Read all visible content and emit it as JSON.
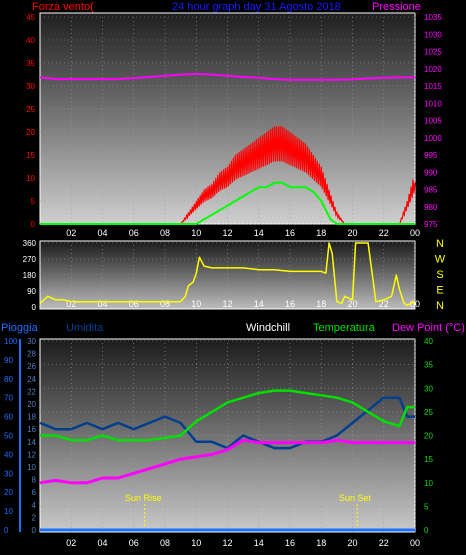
{
  "header": {
    "title": "24 hour graph day  31 Agosto 2018",
    "left_label": "Forza vento(",
    "right_label": "Pressione"
  },
  "wind_panel": {
    "yticks_left": [
      "0",
      "5",
      "10",
      "15",
      "20",
      "25",
      "30",
      "35",
      "40",
      "45"
    ],
    "yticks_right": [
      "975",
      "980",
      "985",
      "990",
      "995",
      "1000",
      "1005",
      "1010",
      "1015",
      "1020",
      "1025",
      "1030",
      "1035"
    ]
  },
  "direction_panel": {
    "yticks_left": [
      "0",
      "90",
      "180",
      "270",
      "360"
    ],
    "compass": [
      "N",
      "W",
      "S",
      "E",
      "N"
    ]
  },
  "temp_panel": {
    "legend": {
      "pioggia": "Pioggia",
      "umidita": "Umidita",
      "windchill": "Windchill",
      "temperatura": "Temperatura",
      "dewpoint": "Dew Point (°C)"
    },
    "rain_ticks": [
      "0",
      "10",
      "20",
      "30",
      "40",
      "50",
      "60",
      "70",
      "80",
      "90",
      "100"
    ],
    "hum_ticks": [
      "0",
      "2",
      "4",
      "6",
      "8",
      "10",
      "12",
      "14",
      "16",
      "18",
      "20",
      "22",
      "24",
      "26",
      "28",
      "30"
    ],
    "temp_ticks": [
      "0",
      "5",
      "10",
      "15",
      "20",
      "25",
      "30",
      "35",
      "40"
    ],
    "sunrise_label": "Sun Rise",
    "sunset_label": "Sun Set"
  },
  "x_ticks": [
    "02",
    "04",
    "06",
    "08",
    "10",
    "12",
    "14",
    "16",
    "18",
    "20",
    "22",
    "00"
  ],
  "colors": {
    "wind": "#ff0000",
    "gust": "#00ff00",
    "pressure": "#ff00ff",
    "direction": "#ffff00",
    "humidity": "#003f8f",
    "temperature": "#00e000",
    "dewpoint": "#ff00ff",
    "rain": "#1a6fff",
    "title": "#1a1aff",
    "compass": "#ffff00",
    "sun_marker": "#ffff00"
  },
  "chart_data": [
    {
      "type": "line",
      "title": "24 hour graph day  31 Agosto 2018",
      "x_unit": "hour",
      "ylim_left": [
        0,
        45
      ],
      "ylim_right": [
        975,
        1035
      ],
      "series": [
        {
          "name": "Forza vento(",
          "axis": "left",
          "x": [
            0,
            9,
            9.5,
            10,
            10.5,
            11,
            11.5,
            12,
            12.5,
            13,
            13.5,
            14,
            14.5,
            15,
            15.5,
            16,
            16.5,
            17,
            17.5,
            18,
            18.5,
            19,
            19.5,
            20,
            21,
            22,
            23,
            23.5,
            24
          ],
          "y": [
            0,
            0,
            2,
            4,
            6,
            7,
            9,
            10,
            12,
            13,
            14,
            15,
            16,
            17,
            17,
            16,
            15,
            14,
            12,
            10,
            6,
            2,
            0,
            0,
            0,
            0,
            0,
            4,
            9
          ]
        },
        {
          "name": "",
          "axis": "left",
          "x": [
            0,
            10,
            10.5,
            11,
            11.5,
            12,
            12.5,
            13,
            13.5,
            14,
            14.5,
            15,
            15.5,
            16,
            16.5,
            17,
            17.5,
            18,
            18.3,
            18.6,
            19,
            24
          ],
          "y": [
            0,
            0,
            1,
            2,
            3,
            4,
            5,
            6,
            7,
            8,
            8,
            9,
            9,
            8,
            8,
            8,
            7,
            5,
            3,
            1,
            0,
            0
          ]
        },
        {
          "name": "Pressione",
          "axis": "right",
          "x": [
            0,
            1,
            2,
            3,
            4,
            5,
            6,
            7,
            8,
            9,
            10,
            11,
            12,
            13,
            14,
            15,
            16,
            17,
            18,
            19,
            20,
            21,
            22,
            23,
            24
          ],
          "y": [
            1017.5,
            1017,
            1017,
            1017,
            1017,
            1017,
            1017.3,
            1017.6,
            1018,
            1018.3,
            1018.5,
            1018.3,
            1018,
            1017.6,
            1017.4,
            1017,
            1016.8,
            1016.8,
            1016.8,
            1016.8,
            1016.9,
            1017.2,
            1017.4,
            1017.5,
            1017.5
          ]
        }
      ]
    },
    {
      "type": "line",
      "x_unit": "hour",
      "ylim": [
        0,
        360
      ],
      "series": [
        {
          "name": "",
          "x": [
            0,
            0.5,
            1,
            1.5,
            2,
            3,
            4,
            5,
            6,
            7,
            8,
            8.5,
            9,
            9.3,
            9.5,
            9.8,
            10,
            10.2,
            10.5,
            11,
            12,
            13,
            14,
            15,
            16,
            17,
            18,
            18.3,
            18.5,
            18.7,
            19,
            19.3,
            19.5,
            20,
            20.2,
            21,
            21.5,
            22,
            22.5,
            22.8,
            23,
            23.3,
            23.5,
            24
          ],
          "y": [
            20,
            60,
            40,
            40,
            30,
            30,
            30,
            30,
            30,
            30,
            30,
            30,
            30,
            60,
            120,
            140,
            190,
            280,
            230,
            220,
            220,
            220,
            210,
            210,
            200,
            200,
            200,
            190,
            360,
            300,
            30,
            20,
            60,
            40,
            360,
            360,
            30,
            40,
            60,
            180,
            100,
            20,
            10,
            30
          ]
        }
      ]
    },
    {
      "type": "line",
      "x_unit": "hour",
      "ylim_rain": [
        0,
        100
      ],
      "ylim_humidity": [
        0,
        30
      ],
      "ylim_temp": [
        0,
        40
      ],
      "series": [
        {
          "name": "Umidita",
          "axis": "humidity",
          "x": [
            0,
            1,
            2,
            3,
            4,
            5,
            6,
            7,
            8,
            9,
            10,
            11,
            12,
            13,
            14,
            15,
            16,
            17,
            18,
            19,
            20,
            21,
            22,
            23,
            23.5,
            24
          ],
          "y": [
            17,
            16,
            16,
            17,
            16,
            17,
            16,
            17,
            18,
            17,
            14,
            14,
            13,
            15,
            14,
            13,
            13,
            14,
            14,
            15,
            17,
            19,
            21,
            21,
            18,
            18
          ]
        },
        {
          "name": "Temperatura",
          "axis": "temp",
          "x": [
            0,
            1,
            2,
            3,
            4,
            5,
            6,
            7,
            8,
            9,
            10,
            11,
            12,
            13,
            14,
            15,
            16,
            17,
            18,
            19,
            20,
            21,
            22,
            23,
            23.5,
            24
          ],
          "y": [
            20,
            20,
            19,
            19,
            20,
            19,
            19,
            19,
            19.5,
            20,
            23,
            25,
            27,
            28,
            29,
            29.5,
            29.5,
            29,
            28.5,
            28,
            27,
            25,
            23,
            22,
            26,
            26
          ]
        },
        {
          "name": "Dew Point (°C)",
          "axis": "temp",
          "x": [
            0,
            1,
            2,
            3,
            4,
            5,
            6,
            7,
            8,
            9,
            10,
            11,
            12,
            13,
            14,
            15,
            16,
            17,
            18,
            19,
            20,
            21,
            22,
            23,
            24
          ],
          "y": [
            10,
            10.5,
            10,
            10,
            11,
            11,
            12,
            13,
            14,
            15,
            15.5,
            16,
            17,
            19,
            18.5,
            18.5,
            18.5,
            18.5,
            18.5,
            19,
            18.5,
            18.5,
            18.5,
            18.5,
            18.5
          ]
        },
        {
          "name": "Pioggia",
          "axis": "rain",
          "x": [
            0,
            24
          ],
          "y": [
            0,
            0
          ]
        }
      ],
      "sunrise_hour": 6.7,
      "sunset_hour": 20.3
    }
  ]
}
